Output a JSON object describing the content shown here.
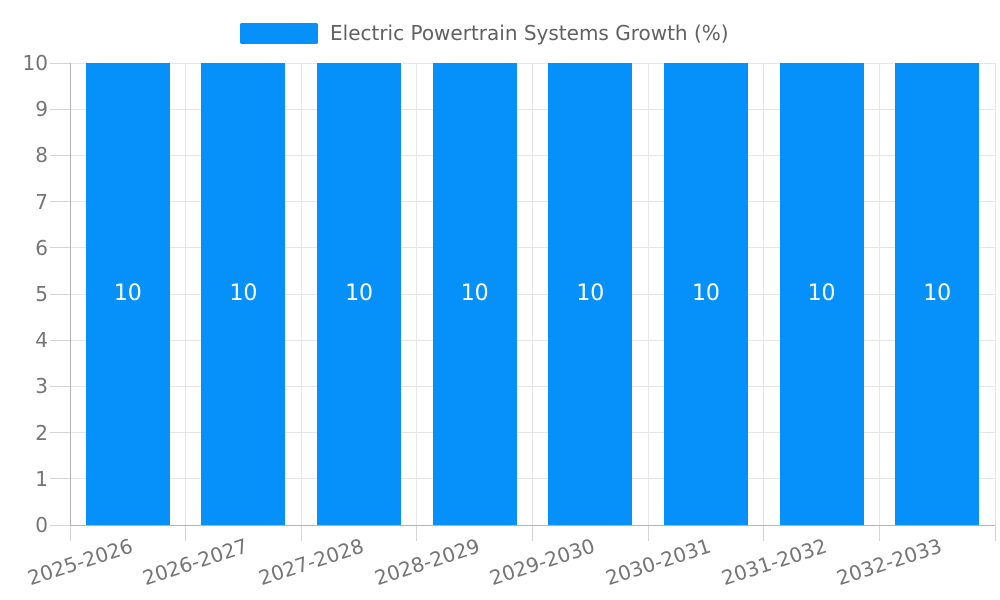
{
  "legend": {
    "items": [
      {
        "label": "Electric Powertrain Systems Growth (%)",
        "color": "#0590FA"
      }
    ]
  },
  "chart_data": {
    "type": "bar",
    "title": "Electric Powertrain Systems Growth (%)",
    "categories": [
      "2025-2026",
      "2026-2027",
      "2027-2028",
      "2028-2029",
      "2029-2030",
      "2030-2031",
      "2031-2032",
      "2032-2033"
    ],
    "series": [
      {
        "name": "Electric Powertrain Systems Growth (%)",
        "values": [
          10,
          10,
          10,
          10,
          10,
          10,
          10,
          10
        ]
      }
    ],
    "data_labels": [
      "10",
      "10",
      "10",
      "10",
      "10",
      "10",
      "10",
      "10"
    ],
    "xlabel": "",
    "ylabel": "",
    "ylim": [
      0,
      10
    ],
    "ytick_step": 1,
    "ytick_labels": [
      "0",
      "1",
      "2",
      "3",
      "4",
      "5",
      "6",
      "7",
      "8",
      "9",
      "10"
    ],
    "grid": true,
    "legend_position": "top",
    "x_label_rotation_deg": -18,
    "bar_color": "#0590FA",
    "bar_label_color": "#ffffff",
    "axis_label_color": "#757575"
  }
}
